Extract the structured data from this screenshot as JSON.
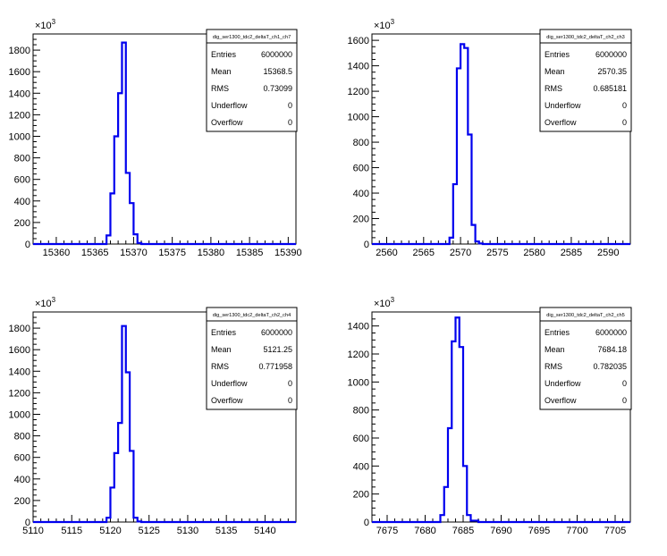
{
  "colors": {
    "histogram": "#0000ee",
    "frame": "#000000",
    "background": "#ffffff"
  },
  "chart_data": [
    {
      "type": "bar",
      "title": "dig_ser1300_tdc2_deltaT_ch1_ch7",
      "xlim": [
        15357,
        15391
      ],
      "x_ticks": [
        15360,
        15365,
        15370,
        15375,
        15380,
        15385,
        15390
      ],
      "ylim": [
        0,
        1950
      ],
      "y_ticks": [
        0,
        200,
        400,
        600,
        800,
        1000,
        1200,
        1400,
        1600,
        1800
      ],
      "y_multiplier": "×10³",
      "bin_width": 0.5,
      "bins_start": 15366,
      "values": [
        0,
        80,
        470,
        1000,
        1400,
        1870,
        660,
        380,
        90,
        10,
        0
      ],
      "stats": {
        "Entries": "6000000",
        "Mean": "15368.5",
        "RMS": "0.73099",
        "Underflow": "0",
        "Overflow": "0"
      }
    },
    {
      "type": "bar",
      "title": "dig_ser1300_tdc2_deltaT_ch2_ch3",
      "xlim": [
        2558,
        2593
      ],
      "x_ticks": [
        2560,
        2565,
        2570,
        2575,
        2580,
        2585,
        2590
      ],
      "ylim": [
        0,
        1650
      ],
      "y_ticks": [
        0,
        200,
        400,
        600,
        800,
        1000,
        1200,
        1400,
        1600
      ],
      "y_multiplier": "×10³",
      "bin_width": 0.5,
      "bins_start": 2568,
      "values": [
        0,
        50,
        470,
        1380,
        1570,
        1540,
        860,
        150,
        20,
        5,
        0
      ],
      "stats": {
        "Entries": "6000000",
        "Mean": "2570.35",
        "RMS": "0.685181",
        "Underflow": "0",
        "Overflow": "0"
      }
    },
    {
      "type": "bar",
      "title": "dig_ser1300_tdc2_deltaT_ch2_ch4",
      "xlim": [
        5110,
        5144
      ],
      "x_ticks": [
        5110,
        5115,
        5120,
        5125,
        5130,
        5135,
        5140
      ],
      "ylim": [
        0,
        1950
      ],
      "y_ticks": [
        0,
        200,
        400,
        600,
        800,
        1000,
        1200,
        1400,
        1600,
        1800
      ],
      "y_multiplier": "×10³",
      "bin_width": 0.5,
      "bins_start": 5119,
      "values": [
        0,
        40,
        320,
        640,
        920,
        1820,
        1390,
        660,
        40,
        5,
        0
      ],
      "stats": {
        "Entries": "6000000",
        "Mean": "5121.25",
        "RMS": "0.771958",
        "Underflow": "0",
        "Overflow": "0"
      }
    },
    {
      "type": "bar",
      "title": "dig_ser1300_tdc2_deltaT_ch2_ch5",
      "xlim": [
        7673,
        7707
      ],
      "x_ticks": [
        7675,
        7680,
        7685,
        7690,
        7695,
        7700,
        7705
      ],
      "ylim": [
        0,
        1500
      ],
      "y_ticks": [
        0,
        200,
        400,
        600,
        800,
        1000,
        1200,
        1400
      ],
      "y_multiplier": "×10³",
      "bin_width": 0.5,
      "bins_start": 7681.5,
      "values": [
        0,
        50,
        250,
        670,
        1290,
        1460,
        1250,
        400,
        50,
        10,
        10,
        0
      ],
      "stats": {
        "Entries": "6000000",
        "Mean": "7684.18",
        "RMS": "0.782035",
        "Underflow": "0",
        "Overflow": "0"
      }
    }
  ]
}
